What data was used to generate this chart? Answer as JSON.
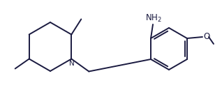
{
  "bg": "#ffffff",
  "lc": "#1a1a40",
  "lw": 1.4,
  "figsize": [
    3.18,
    1.32
  ],
  "dpi": 100,
  "xlim": [
    0,
    318
  ],
  "ylim": [
    0,
    132
  ]
}
